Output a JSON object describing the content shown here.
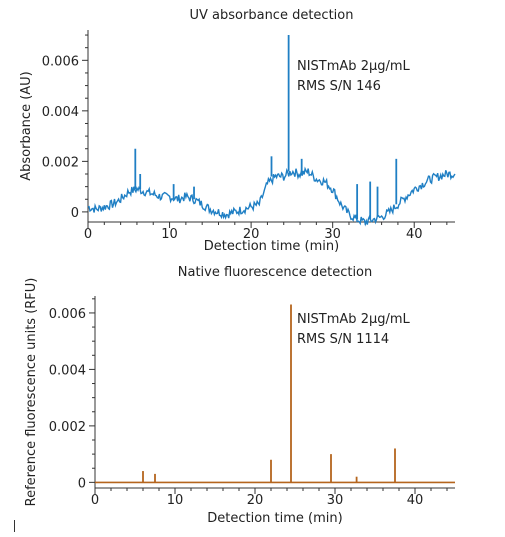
{
  "chart_data": [
    {
      "type": "line",
      "title": "UV absorbance detection",
      "xlabel": "Detection time (min)",
      "ylabel": "Absorbance (AU)",
      "xlim": [
        0,
        45
      ],
      "ylim": [
        -0.0004,
        0.0072
      ],
      "x_ticks": [
        0,
        10,
        20,
        30,
        40
      ],
      "y_ticks": [
        0,
        0.002,
        0.004,
        0.006
      ],
      "y_tick_labels": [
        "0",
        "0.002",
        "0.004",
        "0.006"
      ],
      "annotation": [
        "NISTmAb 2µg/mL",
        "RMS S/N 146"
      ],
      "color": "#1f7fc4",
      "grid": false,
      "x": [
        0,
        1,
        2,
        3,
        4,
        5,
        6,
        7,
        8,
        9,
        10,
        11,
        12,
        13,
        14,
        15,
        16,
        17,
        18,
        19,
        20,
        21,
        22,
        23,
        24,
        25,
        26,
        27,
        28,
        29,
        30,
        31,
        32,
        33,
        34,
        35,
        36,
        37,
        38,
        39,
        40,
        41,
        42,
        43,
        44,
        45
      ],
      "y": [
        0.0002,
        0.0001,
        0.0002,
        0.0003,
        0.0005,
        0.0008,
        0.0009,
        0.0008,
        0.0007,
        0.0006,
        0.0006,
        0.0005,
        0.0006,
        0.0005,
        0.0003,
        0.0001,
        0.0,
        -0.0001,
        0.0,
        0.0001,
        0.0002,
        0.0003,
        0.0011,
        0.0014,
        0.0014,
        0.0016,
        0.0015,
        0.0016,
        0.0013,
        0.0012,
        0.0009,
        0.0003,
        -0.0001,
        -0.0003,
        -0.0004,
        -0.0003,
        -0.0002,
        0.0,
        0.0003,
        0.0006,
        0.0009,
        0.0011,
        0.0013,
        0.0014,
        0.0015,
        0.0015
      ],
      "spikes": [
        {
          "x": 5.8,
          "y": 0.0025
        },
        {
          "x": 6.4,
          "y": 0.0015
        },
        {
          "x": 10.5,
          "y": 0.0011
        },
        {
          "x": 13.0,
          "y": 0.001
        },
        {
          "x": 22.5,
          "y": 0.0022
        },
        {
          "x": 24.6,
          "y": 0.007
        },
        {
          "x": 26.2,
          "y": 0.0021
        },
        {
          "x": 33.0,
          "y": 0.0011
        },
        {
          "x": 34.6,
          "y": 0.0012
        },
        {
          "x": 35.5,
          "y": 0.001
        },
        {
          "x": 37.8,
          "y": 0.0021
        }
      ]
    },
    {
      "type": "line",
      "title": "Native fluorescence detection",
      "xlabel": "Detection time (min)",
      "ylabel": "Reference fluorescence units (RFU)",
      "xlim": [
        0,
        45
      ],
      "ylim": [
        -0.0002,
        0.0066
      ],
      "x_ticks": [
        0,
        10,
        20,
        30,
        40
      ],
      "y_ticks": [
        0,
        0.002,
        0.004,
        0.006
      ],
      "y_tick_labels": [
        "0",
        "0.002",
        "0.004",
        "0.006"
      ],
      "annotation": [
        "NISTmAb 2µg/mL",
        "RMS S/N 1114"
      ],
      "color": "#b5651d",
      "grid": false,
      "x": [
        0,
        5,
        10,
        15,
        20,
        25,
        30,
        35,
        40,
        45
      ],
      "y": [
        0,
        0,
        0,
        0,
        0,
        0,
        0,
        0,
        0,
        0
      ],
      "spikes": [
        {
          "x": 6.0,
          "y": 0.0004
        },
        {
          "x": 7.5,
          "y": 0.0003
        },
        {
          "x": 22.0,
          "y": 0.0008
        },
        {
          "x": 24.5,
          "y": 0.0063
        },
        {
          "x": 29.5,
          "y": 0.001
        },
        {
          "x": 32.7,
          "y": 0.0002
        },
        {
          "x": 37.5,
          "y": 0.0012
        }
      ]
    }
  ]
}
